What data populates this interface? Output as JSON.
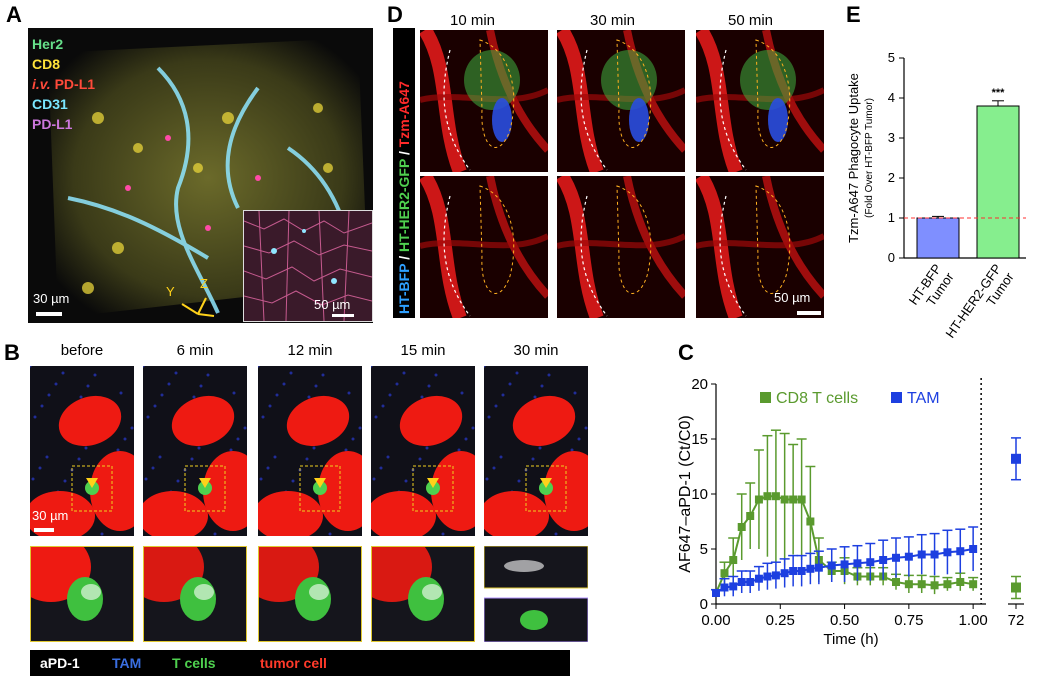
{
  "panel_letters": {
    "a": "A",
    "b": "B",
    "c": "C",
    "d": "D",
    "e": "E"
  },
  "panel_a": {
    "channels": [
      {
        "label": "Her2",
        "color": "#66e08a"
      },
      {
        "label": "CD8",
        "color": "#ffe23a"
      },
      {
        "label_italic": "i.v.",
        "label": " PD-L1",
        "color": "#ff4a3a"
      },
      {
        "label": "CD31",
        "color": "#7ae6ff"
      },
      {
        "label": "PD-L1",
        "color": "#cc77dd"
      }
    ],
    "scale": "30 µm",
    "inset_scale": "50 µm",
    "axes": {
      "y": "Y",
      "z": "Z"
    }
  },
  "panel_b": {
    "timepoints": [
      "before",
      "6 min",
      "12 min",
      "15 min",
      "30 min"
    ],
    "scale": "30 µm",
    "legend": [
      {
        "label": "aPD-1",
        "color": "#ffffff"
      },
      {
        "label": "TAM",
        "color": "#3a6ee0"
      },
      {
        "label": "T cells",
        "color": "#4fd04f"
      },
      {
        "label": "tumor cell",
        "color": "#ff3a2a"
      }
    ]
  },
  "panel_d": {
    "timepoints": [
      "10 min",
      "30 min",
      "50 min"
    ],
    "side_label": [
      {
        "text": "HT-BFP",
        "color": "#2ea0ff"
      },
      {
        "text": " / ",
        "color": "#ffffff"
      },
      {
        "text": "HT-HER2-GFP",
        "color": "#4fd04f"
      },
      {
        "text": " / ",
        "color": "#ffffff"
      },
      {
        "text": "Tzm-A647",
        "color": "#ff2a2a"
      }
    ],
    "scale": "50 µm"
  },
  "chart_data": [
    {
      "id": "E",
      "type": "bar",
      "ylabel": "Tzm-A647 Phagocyte Uptake",
      "ylabel_sub": "(Fold Over HT-BFP Tumor)",
      "categories": [
        "HT-BFP Tumor",
        "HT-HER2-GFP Tumor"
      ],
      "values": [
        1.0,
        3.8
      ],
      "errors": [
        0.04,
        0.13
      ],
      "colors": [
        "#7f8fff",
        "#86ee8e"
      ],
      "significance": "***",
      "reference_line": 1.0,
      "ylim": [
        0,
        5
      ],
      "yticks": [
        0,
        1,
        2,
        3,
        4,
        5
      ]
    },
    {
      "id": "C",
      "type": "line",
      "ylabel": "AF647–aPD-1 (Ct/C0)",
      "xlabel": "Time (h)",
      "xticks": [
        "0.00",
        "0.25",
        "0.50",
        "0.75",
        "1.00",
        "72"
      ],
      "yticks": [
        0,
        5,
        10,
        15,
        20
      ],
      "ylim": [
        0,
        20
      ],
      "xlim": [
        0,
        1.05
      ],
      "series": [
        {
          "name": "CD8 T cells",
          "color": "#5a9a2e",
          "x": [
            0.0,
            0.033,
            0.067,
            0.1,
            0.133,
            0.167,
            0.2,
            0.233,
            0.267,
            0.3,
            0.333,
            0.367,
            0.4,
            0.45,
            0.5,
            0.55,
            0.6,
            0.65,
            0.7,
            0.75,
            0.8,
            0.85,
            0.9,
            0.95,
            1.0
          ],
          "y": [
            1.0,
            2.8,
            4.0,
            7.0,
            8.0,
            9.5,
            9.8,
            9.8,
            9.5,
            9.5,
            9.5,
            7.5,
            4.0,
            3.0,
            3.0,
            2.5,
            2.5,
            2.5,
            2.0,
            1.8,
            1.8,
            1.7,
            1.8,
            2.0,
            1.8
          ],
          "err": [
            0.3,
            1.0,
            2.0,
            3.0,
            3.0,
            4.5,
            5.5,
            6.0,
            6.0,
            5.0,
            5.5,
            5.0,
            2.0,
            0.8,
            1.2,
            0.8,
            0.8,
            0.8,
            0.7,
            0.8,
            0.8,
            0.8,
            0.6,
            0.8,
            0.6
          ],
          "x72": 1.5,
          "err72": 1.0
        },
        {
          "name": "TAM",
          "color": "#1d3fe0",
          "x": [
            0.0,
            0.033,
            0.067,
            0.1,
            0.133,
            0.167,
            0.2,
            0.233,
            0.267,
            0.3,
            0.333,
            0.367,
            0.4,
            0.45,
            0.5,
            0.55,
            0.6,
            0.65,
            0.7,
            0.75,
            0.8,
            0.85,
            0.9,
            0.95,
            1.0
          ],
          "y": [
            1.0,
            1.5,
            1.6,
            2.0,
            2.0,
            2.3,
            2.5,
            2.6,
            2.8,
            3.0,
            3.0,
            3.2,
            3.3,
            3.5,
            3.6,
            3.7,
            3.8,
            4.0,
            4.2,
            4.3,
            4.5,
            4.5,
            4.7,
            4.8,
            5.0
          ],
          "err": [
            0.3,
            0.8,
            0.9,
            1.0,
            1.0,
            1.1,
            1.2,
            1.2,
            1.3,
            1.4,
            1.4,
            1.4,
            1.5,
            1.5,
            1.6,
            1.6,
            1.7,
            1.8,
            1.8,
            1.8,
            1.8,
            1.9,
            2.0,
            2.0,
            2.0
          ],
          "x72": 13.2,
          "err72": 1.9
        }
      ]
    }
  ]
}
